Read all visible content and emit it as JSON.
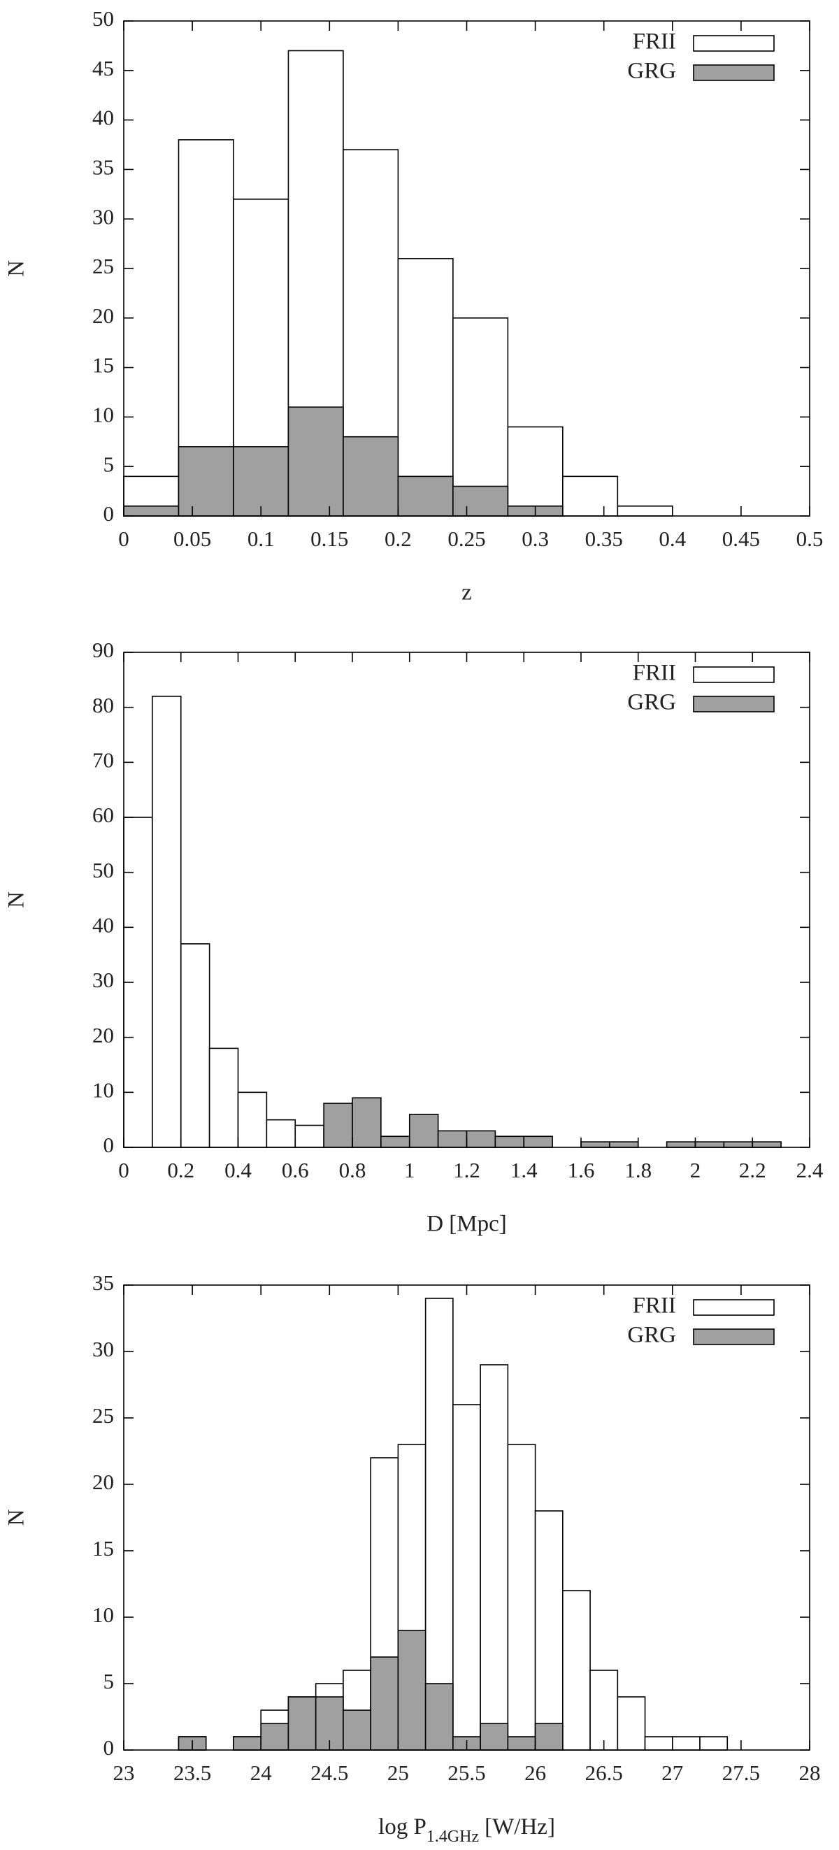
{
  "chart_data": [
    {
      "type": "histogram",
      "x_label": "z",
      "y_label": "N",
      "bins": [
        0,
        0.04,
        0.08,
        0.12,
        0.16,
        0.2,
        0.24,
        0.28,
        0.32,
        0.36,
        0.4
      ],
      "series": [
        {
          "name": "FRII",
          "color": "#ffffff",
          "values": [
            4,
            38,
            32,
            47,
            37,
            26,
            20,
            9,
            4,
            1
          ]
        },
        {
          "name": "GRG",
          "color": "#a0a0a0",
          "values": [
            1,
            7,
            7,
            11,
            8,
            4,
            3,
            1,
            0,
            0
          ]
        }
      ],
      "xlim": [
        0,
        0.5
      ],
      "xticks": [
        0,
        0.05,
        0.1,
        0.15,
        0.2,
        0.25,
        0.3,
        0.35,
        0.4,
        0.45,
        0.5
      ],
      "ylim": [
        0,
        50
      ],
      "yticks": [
        0,
        5,
        10,
        15,
        20,
        25,
        30,
        35,
        40,
        45,
        50
      ],
      "legend": "upper right"
    },
    {
      "type": "histogram",
      "x_label": "D [Mpc]",
      "y_label": "N",
      "bins": [
        0,
        0.1,
        0.2,
        0.3,
        0.4,
        0.5,
        0.6,
        0.7,
        0.8,
        0.9,
        1.0,
        1.1,
        1.2,
        1.3,
        1.4,
        1.5,
        1.6,
        1.7,
        1.8,
        1.9,
        2.0,
        2.1,
        2.2,
        2.3
      ],
      "series": [
        {
          "name": "FRII",
          "color": "#ffffff",
          "values": [
            60,
            82,
            37,
            18,
            10,
            5,
            4,
            0,
            0,
            0,
            0,
            0,
            0,
            0,
            0,
            0,
            0,
            0,
            0,
            0,
            0,
            0,
            0
          ]
        },
        {
          "name": "GRG",
          "color": "#a0a0a0",
          "values": [
            0,
            0,
            0,
            0,
            0,
            0,
            0,
            8,
            9,
            2,
            6,
            3,
            3,
            2,
            2,
            0,
            1,
            1,
            0,
            1,
            1,
            1,
            1
          ]
        }
      ],
      "xlim": [
        0,
        2.4
      ],
      "xticks": [
        0,
        0.2,
        0.4,
        0.6,
        0.8,
        1,
        1.2,
        1.4,
        1.6,
        1.8,
        2,
        2.2,
        2.4
      ],
      "ylim": [
        0,
        90
      ],
      "yticks": [
        0,
        10,
        20,
        30,
        40,
        50,
        60,
        70,
        80,
        90
      ],
      "legend": "upper right"
    },
    {
      "type": "histogram",
      "x_label": [
        "log P",
        "1.4GHz",
        "[W/Hz]"
      ],
      "y_label": "N",
      "bins": [
        23.4,
        23.6,
        23.8,
        24.0,
        24.2,
        24.4,
        24.6,
        24.8,
        25.0,
        25.2,
        25.4,
        25.6,
        25.8,
        26.0,
        26.2,
        26.4,
        26.6,
        26.8,
        27.0,
        27.2,
        27.4
      ],
      "series": [
        {
          "name": "FRII",
          "color": "#ffffff",
          "values": [
            1,
            0,
            1,
            3,
            4,
            5,
            6,
            22,
            23,
            34,
            26,
            29,
            23,
            18,
            12,
            6,
            4,
            1,
            1,
            1
          ]
        },
        {
          "name": "GRG",
          "color": "#a0a0a0",
          "values": [
            1,
            0,
            1,
            2,
            4,
            4,
            3,
            7,
            9,
            5,
            1,
            2,
            1,
            2,
            0,
            0,
            0,
            0,
            0,
            0
          ]
        }
      ],
      "xlim": [
        23,
        28
      ],
      "xticks": [
        23,
        23.5,
        24,
        24.5,
        25,
        25.5,
        26,
        26.5,
        27,
        27.5,
        28
      ],
      "ylim": [
        0,
        35
      ],
      "yticks": [
        0,
        5,
        10,
        15,
        20,
        25,
        30,
        35
      ],
      "legend": "upper right"
    }
  ]
}
